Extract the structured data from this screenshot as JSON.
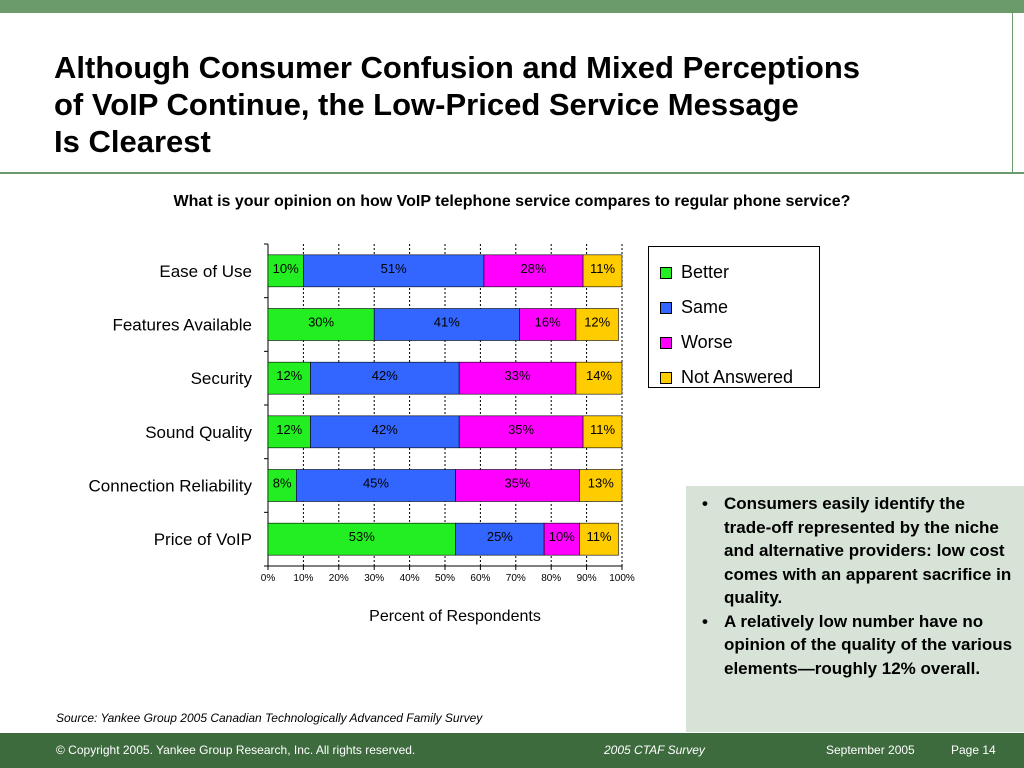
{
  "title": {
    "line1": "Although Consumer Confusion and Mixed Perceptions",
    "line2": "of VoIP Continue, the Low-Priced Service Message",
    "line3": "Is Clearest"
  },
  "question": "What is your opinion on how VoIP telephone service compares to regular phone service?",
  "chart_data": {
    "type": "bar",
    "orientation": "horizontal",
    "stacked": true,
    "categories": [
      "Ease of Use",
      "Features Available",
      "Security",
      "Sound Quality",
      "Connection Reliability",
      "Price of VoIP"
    ],
    "series": [
      {
        "name": "Better",
        "values": [
          10,
          30,
          12,
          12,
          8,
          53
        ],
        "labels": [
          "10%",
          "30%",
          "12%",
          "12%",
          "8%",
          "53%"
        ]
      },
      {
        "name": "Same",
        "values": [
          51,
          41,
          42,
          42,
          45,
          25
        ],
        "labels": [
          "51%",
          "41%",
          "42%",
          "42%",
          "45%",
          "25%"
        ]
      },
      {
        "name": "Worse",
        "values": [
          28,
          16,
          33,
          35,
          35,
          10
        ],
        "labels": [
          "28%",
          "16%",
          "33%",
          "35%",
          "35%",
          "10%"
        ]
      },
      {
        "name": "Not Answered",
        "values": [
          11,
          12,
          14,
          11,
          13,
          11
        ],
        "labels": [
          "11%",
          "12%",
          "14%",
          "11%",
          "13%",
          "11%"
        ]
      }
    ],
    "colors": [
      "#22ee22",
      "#3366ff",
      "#ff00ff",
      "#ffcc00"
    ],
    "xlabel": "Percent of Respondents",
    "ylabel": "",
    "xlim": [
      0,
      100
    ],
    "xticks": [
      "0%",
      "10%",
      "20%",
      "30%",
      "40%",
      "50%",
      "60%",
      "70%",
      "80%",
      "90%",
      "100%"
    ],
    "grid": true,
    "legend_position": "right"
  },
  "notes": [
    "Consumers easily identify the trade-off represented by the niche and alternative providers: low cost comes with an apparent sacrifice in quality.",
    "A relatively low number have no opinion of the quality of the various elements—roughly 12% overall."
  ],
  "bullet_char": "•",
  "source": "Source: Yankee Group 2005 Canadian Technologically Advanced Family Survey",
  "footer": {
    "copyright": "© Copyright 2005. Yankee Group Research, Inc.  All rights reserved.",
    "survey": "2005 CTAF Survey",
    "date": "September 2005",
    "page": "Page 14"
  }
}
